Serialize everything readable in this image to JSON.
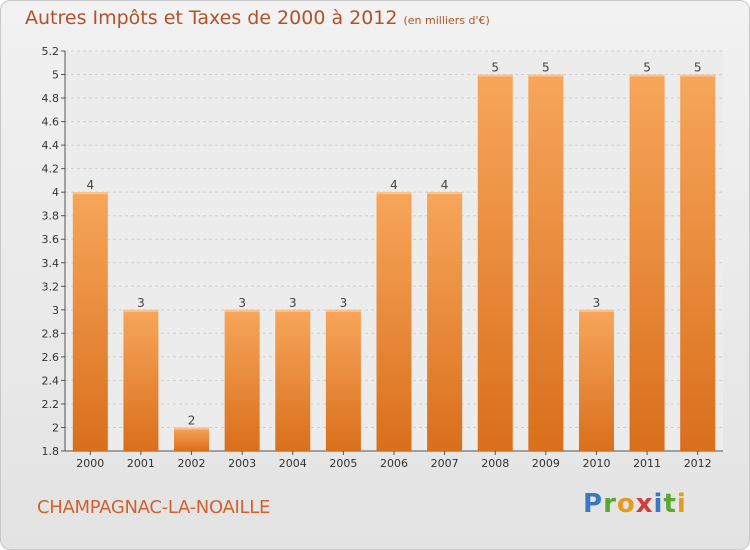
{
  "header": {
    "title": "Autres Impôts et Taxes de 2000 à 2012",
    "unit": "(en milliers d'€)"
  },
  "footer": {
    "commune": "CHAMPAGNAC-LA-NOAILLE",
    "logo_letters": [
      "P",
      "r",
      "o",
      "x",
      "i",
      "t",
      "i"
    ]
  },
  "colors": {
    "bar_top": "#f7a65a",
    "bar_bottom": "#d96f1c",
    "title": "#b0532a",
    "grid": "#d0d0d0"
  },
  "chart_data": {
    "type": "bar",
    "title": "Autres Impôts et Taxes de 2000 à 2012",
    "xlabel": "",
    "ylabel": "",
    "categories": [
      "2000",
      "2001",
      "2002",
      "2003",
      "2004",
      "2005",
      "2006",
      "2007",
      "2008",
      "2009",
      "2010",
      "2011",
      "2012"
    ],
    "values": [
      4,
      3,
      2,
      3,
      3,
      3,
      4,
      4,
      5,
      5,
      3,
      5,
      5
    ],
    "y_positions": [
      4,
      3,
      2,
      3,
      3,
      3,
      4,
      4,
      5,
      5,
      3,
      5,
      5
    ],
    "data_labels": [
      "4",
      "3",
      "2",
      "3",
      "3",
      "3",
      "4",
      "4",
      "5",
      "5",
      "3",
      "5",
      "5"
    ],
    "ylim": [
      1.8,
      5.2
    ],
    "yticks": [
      1.8,
      2,
      2.2,
      2.4,
      2.6,
      2.8,
      3,
      3.2,
      3.4,
      3.6,
      3.8,
      4,
      4.2,
      4.4,
      4.6,
      4.8,
      5,
      5.2
    ],
    "ytick_labels": [
      "1.8",
      "2",
      "2.2",
      "2.4",
      "2.6",
      "2.8",
      "3",
      "3.2",
      "3.4",
      "3.6",
      "3.8",
      "4",
      "4.2",
      "4.4",
      "4.6",
      "4.8",
      "5",
      "5.2"
    ],
    "grid": true,
    "legend": "none"
  }
}
